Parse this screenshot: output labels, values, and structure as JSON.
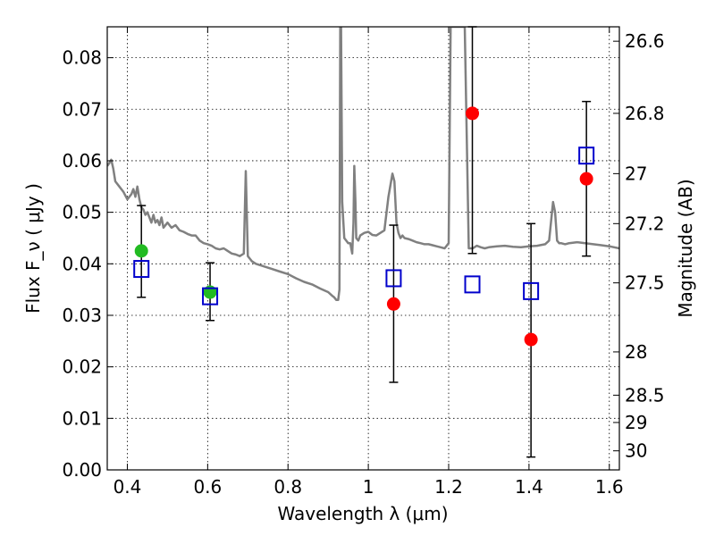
{
  "chart_data": {
    "type": "scatter",
    "title": "",
    "xlabel": "Wavelength  λ (μm)",
    "ylabel": "Flux  F_ν  ( μJy )",
    "ylabel_right": "Magnitude (AB)",
    "xlim": [
      0.35,
      1.625
    ],
    "ylim": [
      0.0,
      0.086
    ],
    "grid": true,
    "x_ticks": [
      0.4,
      0.6,
      0.8,
      1.0,
      1.2,
      1.4,
      1.6
    ],
    "x_tick_labels": [
      "0.4",
      "0.6",
      "0.8",
      "1",
      "1.2",
      "1.4",
      "1.6"
    ],
    "y_ticks": [
      0.0,
      0.01,
      0.02,
      0.03,
      0.04,
      0.05,
      0.06,
      0.07,
      0.08
    ],
    "y_tick_labels": [
      "0.00",
      "0.01",
      "0.02",
      "0.03",
      "0.04",
      "0.05",
      "0.06",
      "0.07",
      "0.08"
    ],
    "right_ticks": [
      {
        "label": "26.6",
        "flux": 0.0832
      },
      {
        "label": "26.8",
        "flux": 0.0692
      },
      {
        "label": "27",
        "flux": 0.0575
      },
      {
        "label": "27.2",
        "flux": 0.0478
      },
      {
        "label": "27.5",
        "flux": 0.0363
      },
      {
        "label": "28",
        "flux": 0.0229
      },
      {
        "label": "28.5",
        "flux": 0.0145
      },
      {
        "label": "29",
        "flux": 0.0092
      },
      {
        "label": "30",
        "flux": 0.0037
      }
    ],
    "model_sed": {
      "color": "#808080",
      "x": [
        0.35,
        0.355,
        0.36,
        0.365,
        0.37,
        0.38,
        0.39,
        0.4,
        0.41,
        0.415,
        0.42,
        0.425,
        0.43,
        0.435,
        0.44,
        0.445,
        0.45,
        0.455,
        0.46,
        0.465,
        0.47,
        0.475,
        0.48,
        0.485,
        0.49,
        0.5,
        0.51,
        0.52,
        0.53,
        0.54,
        0.55,
        0.56,
        0.57,
        0.58,
        0.59,
        0.6,
        0.61,
        0.62,
        0.63,
        0.64,
        0.65,
        0.66,
        0.67,
        0.68,
        0.69,
        0.695,
        0.7,
        0.705,
        0.71,
        0.72,
        0.74,
        0.76,
        0.78,
        0.8,
        0.82,
        0.84,
        0.86,
        0.88,
        0.9,
        0.91,
        0.915,
        0.92,
        0.925,
        0.928,
        0.93,
        0.932,
        0.935,
        0.94,
        0.95,
        0.955,
        0.96,
        0.963,
        0.965,
        0.968,
        0.97,
        0.975,
        0.98,
        0.99,
        1.0,
        1.01,
        1.02,
        1.03,
        1.04,
        1.05,
        1.06,
        1.065,
        1.07,
        1.075,
        1.08,
        1.085,
        1.09,
        1.1,
        1.11,
        1.12,
        1.13,
        1.14,
        1.15,
        1.16,
        1.17,
        1.18,
        1.19,
        1.2,
        1.205,
        1.21,
        1.22,
        1.23,
        1.24,
        1.25,
        1.26,
        1.27,
        1.28,
        1.29,
        1.3,
        1.32,
        1.34,
        1.36,
        1.38,
        1.4,
        1.42,
        1.44,
        1.45,
        1.46,
        1.465,
        1.47,
        1.475,
        1.48,
        1.49,
        1.5,
        1.52,
        1.54,
        1.56,
        1.58,
        1.6,
        1.625
      ],
      "y": [
        0.059,
        0.0595,
        0.0602,
        0.0585,
        0.056,
        0.055,
        0.054,
        0.0525,
        0.0535,
        0.0545,
        0.053,
        0.055,
        0.0525,
        0.051,
        0.0505,
        0.0495,
        0.05,
        0.049,
        0.048,
        0.0495,
        0.048,
        0.0485,
        0.0475,
        0.049,
        0.047,
        0.048,
        0.047,
        0.0475,
        0.0465,
        0.0462,
        0.0458,
        0.0455,
        0.0455,
        0.0445,
        0.044,
        0.0438,
        0.0435,
        0.043,
        0.0428,
        0.043,
        0.0425,
        0.042,
        0.0418,
        0.0415,
        0.042,
        0.058,
        0.0415,
        0.041,
        0.0405,
        0.04,
        0.0395,
        0.039,
        0.0385,
        0.038,
        0.0372,
        0.0365,
        0.036,
        0.0352,
        0.0345,
        0.0338,
        0.0335,
        0.033,
        0.033,
        0.035,
        0.086,
        0.086,
        0.052,
        0.045,
        0.044,
        0.044,
        0.042,
        0.048,
        0.059,
        0.052,
        0.045,
        0.0445,
        0.0455,
        0.046,
        0.0462,
        0.0456,
        0.0455,
        0.046,
        0.0465,
        0.053,
        0.0575,
        0.056,
        0.048,
        0.046,
        0.045,
        0.0455,
        0.045,
        0.0448,
        0.0445,
        0.0442,
        0.044,
        0.0438,
        0.0438,
        0.0436,
        0.0434,
        0.0432,
        0.043,
        0.044,
        0.086,
        0.086,
        0.086,
        0.086,
        0.086,
        0.043,
        0.043,
        0.0435,
        0.0432,
        0.043,
        0.0432,
        0.0434,
        0.0435,
        0.0433,
        0.0432,
        0.0434,
        0.0435,
        0.0438,
        0.0445,
        0.052,
        0.05,
        0.0445,
        0.044,
        0.044,
        0.0438,
        0.044,
        0.0442,
        0.044,
        0.0438,
        0.0436,
        0.0434,
        0.043
      ]
    },
    "series": [
      {
        "name": "",
        "marker": "circle",
        "color": "#ff0000",
        "points": [
          {
            "x": 1.063,
            "y": 0.0322,
            "err_low": 0.017,
            "err_high": 0.0475
          },
          {
            "x": 1.259,
            "y": 0.0692,
            "err_low": 0.042,
            "err_high": 0.086
          },
          {
            "x": 1.405,
            "y": 0.0253,
            "err_low": 0.0025,
            "err_high": 0.0478
          },
          {
            "x": 1.543,
            "y": 0.0565,
            "err_low": 0.0415,
            "err_high": 0.0715
          }
        ]
      },
      {
        "name": "",
        "marker": "circle",
        "color": "#22bb22",
        "points": [
          {
            "x": 0.435,
            "y": 0.0425,
            "err_low": 0.0335,
            "err_high": 0.0513
          },
          {
            "x": 0.606,
            "y": 0.0345,
            "err_low": 0.029,
            "err_high": 0.0402
          }
        ]
      },
      {
        "name": "",
        "marker": "open-square",
        "color": "#0000cc",
        "points": [
          {
            "x": 0.435,
            "y": 0.039
          },
          {
            "x": 0.606,
            "y": 0.0337
          },
          {
            "x": 1.063,
            "y": 0.0372
          },
          {
            "x": 1.259,
            "y": 0.036
          },
          {
            "x": 1.405,
            "y": 0.0347
          },
          {
            "x": 1.543,
            "y": 0.061
          }
        ]
      }
    ]
  }
}
